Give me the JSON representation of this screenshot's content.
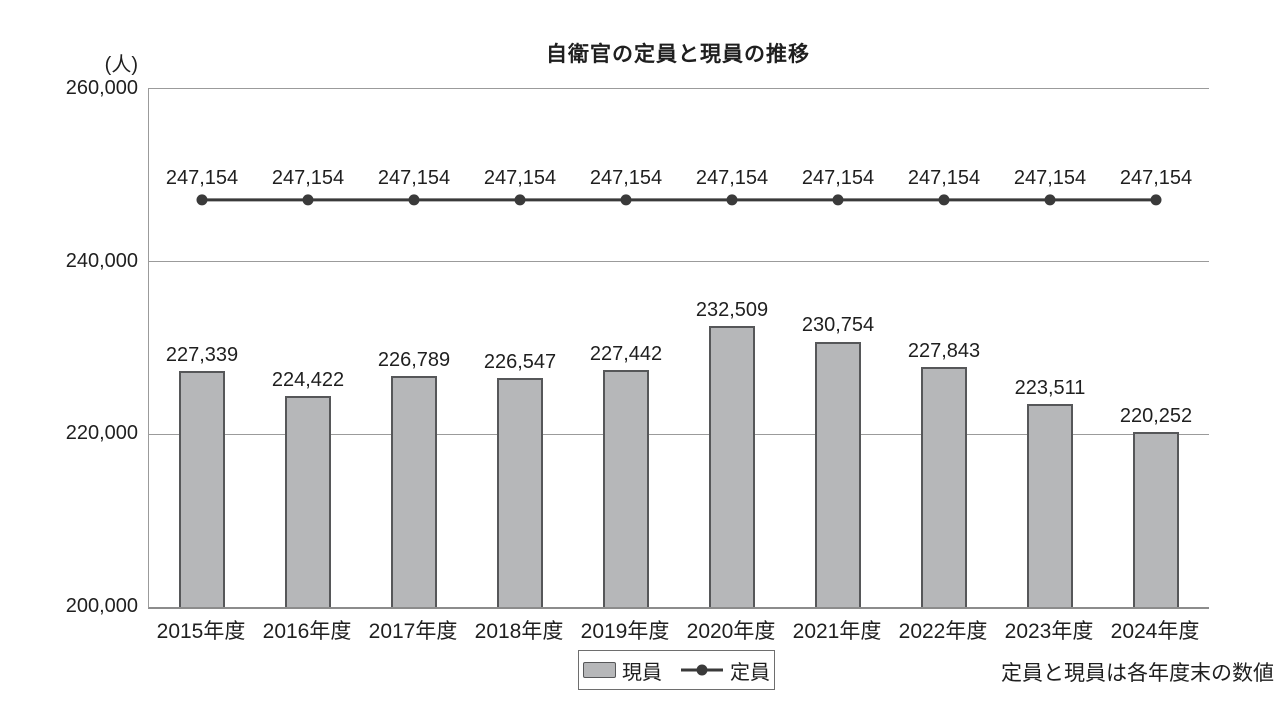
{
  "chart_data": {
    "type": "combo",
    "title": "自衛官の定員と現員の推移",
    "unit_label": "(人)",
    "categories": [
      "2015年度",
      "2016年度",
      "2017年度",
      "2018年度",
      "2019年度",
      "2020年度",
      "2021年度",
      "2022年度",
      "2023年度",
      "2024年度"
    ],
    "series": [
      {
        "name": "現員",
        "kind": "bar",
        "values": [
          227339,
          224422,
          226789,
          226547,
          227442,
          232509,
          230754,
          227843,
          223511,
          220252
        ]
      },
      {
        "name": "定員",
        "kind": "line",
        "values": [
          247154,
          247154,
          247154,
          247154,
          247154,
          247154,
          247154,
          247154,
          247154,
          247154
        ]
      }
    ],
    "ylim": [
      200000,
      260000
    ],
    "yticks": [
      200000,
      220000,
      240000,
      260000
    ],
    "grid": "horizontal",
    "legend_position": "bottom-center",
    "footnote": "定員と現員は各年度末の数値",
    "colors": {
      "background": "#ffffff",
      "text": "#1f1f1f",
      "bar_fill": "#b6b7b9",
      "bar_border": "#565759",
      "line": "#3a3a3a",
      "grid": "#9b9b9b"
    }
  }
}
